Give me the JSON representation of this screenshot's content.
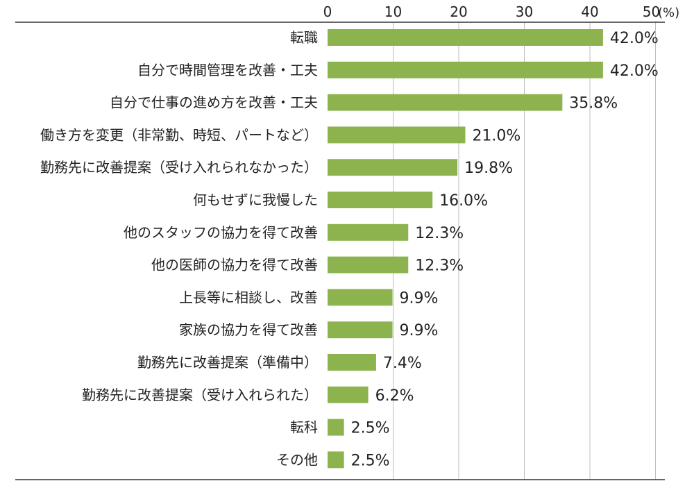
{
  "chart_data": {
    "type": "bar",
    "orientation": "horizontal",
    "unit": "(%)",
    "xlim": [
      0,
      50
    ],
    "ticks": [
      "0",
      "10",
      "20",
      "30",
      "40",
      "50"
    ],
    "grid": true,
    "bar_color": "#8cb34e",
    "categories": [
      "転職",
      "自分で時間管理を改善・工夫",
      "自分で仕事の進め方を改善・工夫",
      "働き方を変更（非常勤、時短、パートなど）",
      "勤務先に改善提案（受け入れられなかった）",
      "何もせずに我慢した",
      "他のスタッフの協力を得て改善",
      "他の医師の協力を得て改善",
      "上長等に相談し、改善",
      "家族の協力を得て改善",
      "勤務先に改善提案（準備中）",
      "勤務先に改善提案（受け入れられた）",
      "転科",
      "その他"
    ],
    "values": [
      42.0,
      42.0,
      35.8,
      21.0,
      19.8,
      16.0,
      12.3,
      12.3,
      9.9,
      9.9,
      7.4,
      6.2,
      2.5,
      2.5
    ],
    "value_labels": [
      "42.0%",
      "42.0%",
      "35.8%",
      "21.0%",
      "19.8%",
      "16.0%",
      "12.3%",
      "12.3%",
      "9.9%",
      "9.9%",
      "7.4%",
      "6.2%",
      "2.5%",
      "2.5%"
    ]
  }
}
